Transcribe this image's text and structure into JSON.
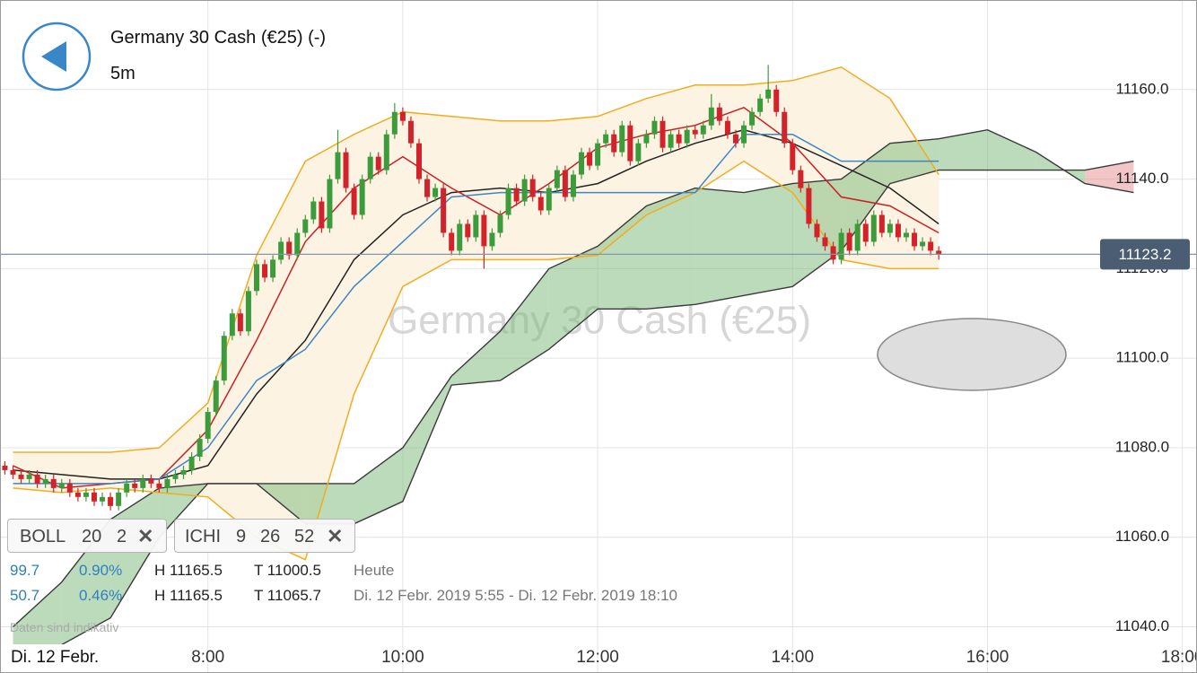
{
  "chart_data": {
    "type": "candlestick",
    "title": "Germany 30 Cash (€25) (-)",
    "interval": "5m",
    "watermark": "Germany 30 Cash (€25)",
    "date_label": "Di. 12 Febr.",
    "x": [
      "5:55",
      "6:00",
      "6:05",
      "6:10",
      "6:15",
      "6:20",
      "6:25",
      "6:30",
      "6:35",
      "6:40",
      "6:45",
      "6:50",
      "6:55",
      "7:00",
      "7:05",
      "7:10",
      "7:15",
      "7:20",
      "7:25",
      "7:30",
      "7:35",
      "7:40",
      "7:45",
      "7:50",
      "7:55",
      "8:00",
      "8:05",
      "8:10",
      "8:15",
      "8:20",
      "8:25",
      "8:30",
      "8:35",
      "8:40",
      "8:45",
      "8:50",
      "8:55",
      "9:00",
      "9:05",
      "9:10",
      "9:15",
      "9:20",
      "9:25",
      "9:30",
      "9:35",
      "9:40",
      "9:45",
      "9:50",
      "9:55",
      "10:00",
      "10:05",
      "10:10",
      "10:15",
      "10:20",
      "10:25",
      "10:30",
      "10:35",
      "10:40",
      "10:45",
      "10:50",
      "10:55",
      "11:00",
      "11:05",
      "11:10",
      "11:15",
      "11:20",
      "11:25",
      "11:30",
      "11:35",
      "11:40",
      "11:45",
      "11:50",
      "11:55",
      "12:00",
      "12:05",
      "12:10",
      "12:15",
      "12:20",
      "12:25",
      "12:30",
      "12:35",
      "12:40",
      "12:45",
      "12:50",
      "12:55",
      "13:00",
      "13:05",
      "13:10",
      "13:15",
      "13:20",
      "13:25",
      "13:30",
      "13:35",
      "13:40",
      "13:45",
      "13:50",
      "13:55",
      "14:00",
      "14:05",
      "14:10",
      "14:15",
      "14:20",
      "14:25",
      "14:30",
      "14:35",
      "14:40",
      "14:45",
      "14:50",
      "14:55",
      "15:00",
      "15:05",
      "15:10",
      "15:15",
      "15:20",
      "15:25",
      "15:30"
    ],
    "open": [
      11076,
      11075,
      11074,
      11073,
      11074,
      11072,
      11073,
      11071,
      11072,
      11070,
      11069,
      11070,
      11068,
      11069,
      11067,
      11070,
      11072,
      11071,
      11073,
      11072,
      11071,
      11073,
      11074,
      11075,
      11078,
      11082,
      11088,
      11095,
      11105,
      11110,
      11106,
      11115,
      11121,
      11118,
      11122,
      11126,
      11123,
      11128,
      11131,
      11135,
      11129,
      11140,
      11146,
      11138,
      11132,
      11140,
      11145,
      11142,
      11150,
      11155,
      11153,
      11148,
      11140,
      11136,
      11138,
      11128,
      11124,
      11130,
      11127,
      11132,
      11125,
      11128,
      11132,
      11138,
      11135,
      11140,
      11136,
      11133,
      11138,
      11142,
      11136,
      11141,
      11146,
      11143,
      11148,
      11150,
      11146,
      11152,
      11144,
      11148,
      11150,
      11153,
      11147,
      11150,
      11148,
      11151,
      11150,
      11152,
      11156,
      11153,
      11150,
      11148,
      11152,
      11155,
      11158,
      11160,
      11155,
      11148,
      11142,
      11138,
      11130,
      11127,
      11125,
      11122,
      11128,
      11124,
      11130,
      11126,
      11132,
      11128,
      11130,
      11127,
      11128,
      11125,
      11126,
      11124
    ],
    "high": [
      11077,
      11076,
      11075,
      11075,
      11075,
      11074,
      11074,
      11073,
      11073,
      11071,
      11071,
      11071,
      11070,
      11070,
      11071,
      11073,
      11073,
      11074,
      11074,
      11073,
      11074,
      11075,
      11076,
      11079,
      11083,
      11089,
      11096,
      11106,
      11111,
      11111,
      11116,
      11122,
      11122,
      11123,
      11127,
      11127,
      11129,
      11132,
      11136,
      11136,
      11141,
      11151,
      11147,
      11139,
      11141,
      11146,
      11146,
      11151,
      11157,
      11156,
      11154,
      11149,
      11141,
      11139,
      11139,
      11129,
      11131,
      11131,
      11133,
      11133,
      11129,
      11133,
      11139,
      11139,
      11141,
      11141,
      11137,
      11139,
      11143,
      11143,
      11142,
      11147,
      11147,
      11149,
      11151,
      11151,
      11153,
      11153,
      11149,
      11151,
      11154,
      11154,
      11151,
      11151,
      11152,
      11152,
      11153,
      11159,
      11157,
      11154,
      11151,
      11153,
      11156,
      11159,
      11165.5,
      11161,
      11156,
      11149,
      11143,
      11139,
      11131,
      11128,
      11126,
      11129,
      11129,
      11131,
      11131,
      11133,
      11133,
      11131,
      11131,
      11129,
      11129,
      11127,
      11127,
      11125
    ],
    "low": [
      11074,
      11073,
      11072,
      11072,
      11071,
      11071,
      11070,
      11070,
      11069,
      11068,
      11068,
      11067,
      11067,
      11066,
      11066,
      11069,
      11070,
      11070,
      11071,
      11070,
      11070,
      11072,
      11073,
      11074,
      11077,
      11081,
      11087,
      11094,
      11104,
      11105,
      11105,
      11114,
      11117,
      11117,
      11121,
      11122,
      11122,
      11127,
      11130,
      11128,
      11128,
      11139,
      11137,
      11131,
      11131,
      11139,
      11141,
      11141,
      11149,
      11152,
      11147,
      11139,
      11135,
      11135,
      11127,
      11123,
      11123,
      11126,
      11126,
      11120,
      11124,
      11127,
      11131,
      11134,
      11134,
      11135,
      11132,
      11132,
      11137,
      11135,
      11135,
      11140,
      11142,
      11142,
      11147,
      11145,
      11145,
      11143,
      11143,
      11147,
      11149,
      11146,
      11146,
      11147,
      11147,
      11149,
      11149,
      11151,
      11152,
      11149,
      11147,
      11147,
      11151,
      11154,
      11157,
      11154,
      11147,
      11141,
      11137,
      11129,
      11126,
      11124,
      11121,
      11121,
      11123,
      11123,
      11125,
      11125,
      11127,
      11127,
      11126,
      11126,
      11124,
      11124,
      11123,
      11122
    ],
    "close": [
      11075,
      11074,
      11073,
      11074,
      11072,
      11073,
      11071,
      11072,
      11070,
      11069,
      11070,
      11068,
      11069,
      11067,
      11070,
      11072,
      11071,
      11073,
      11072,
      11071,
      11073,
      11074,
      11075,
      11078,
      11082,
      11088,
      11095,
      11105,
      11110,
      11106,
      11115,
      11121,
      11118,
      11122,
      11126,
      11123,
      11128,
      11131,
      11135,
      11129,
      11140,
      11146,
      11138,
      11132,
      11140,
      11145,
      11142,
      11150,
      11155,
      11153,
      11148,
      11140,
      11136,
      11138,
      11128,
      11124,
      11130,
      11127,
      11132,
      11125,
      11128,
      11132,
      11138,
      11135,
      11140,
      11136,
      11133,
      11138,
      11142,
      11136,
      11141,
      11146,
      11143,
      11148,
      11150,
      11146,
      11152,
      11144,
      11148,
      11150,
      11153,
      11147,
      11150,
      11148,
      11151,
      11150,
      11152,
      11156,
      11153,
      11150,
      11148,
      11152,
      11155,
      11158,
      11160,
      11155,
      11148,
      11142,
      11138,
      11130,
      11127,
      11125,
      11122,
      11128,
      11124,
      11130,
      11126,
      11132,
      11128,
      11130,
      11127,
      11128,
      11125,
      11126,
      11124,
      11123.2
    ],
    "up_color": "#3c9c3c",
    "down_color": "#d2232a",
    "indicators": {
      "x": [
        "6:00",
        "6:30",
        "7:00",
        "7:30",
        "8:00",
        "8:30",
        "9:00",
        "9:30",
        "10:00",
        "10:30",
        "11:00",
        "11:30",
        "12:00",
        "12:30",
        "13:00",
        "13:30",
        "14:00",
        "14:30",
        "15:00",
        "15:30"
      ],
      "band_fill": "#fdf3e3",
      "series": [
        {
          "color": "#f0ad1e",
          "values": [
            11079,
            11079,
            11079,
            11080,
            11090,
            11123,
            11144,
            11150,
            11155,
            11154,
            11153,
            11153,
            11154,
            11158,
            11161,
            11161,
            11162,
            11165,
            11158,
            11141
          ]
        },
        {
          "color": "#222222",
          "values": [
            11075,
            11074,
            11073,
            11073,
            11076,
            11092,
            11104,
            11122,
            11132,
            11137,
            11138,
            11137,
            11139,
            11144,
            11148,
            11151,
            11148,
            11143,
            11138,
            11130
          ]
        },
        {
          "color": "#f0ad1e",
          "values": [
            11071,
            11070,
            11071,
            11070,
            11069,
            11060,
            11055,
            11092,
            11116,
            11122,
            11122,
            11122,
            11123,
            11132,
            11137,
            11144,
            11137,
            11122,
            11120,
            11120
          ]
        },
        {
          "color": "#cc1f24",
          "values": [
            11076,
            11071,
            11072,
            11073,
            11084,
            11104,
            11126,
            11138,
            11145,
            11138,
            11132,
            11139,
            11147,
            11150,
            11152,
            11156,
            11148,
            11136,
            11134,
            11128
          ]
        },
        {
          "color": "#3d86c6",
          "values": [
            11072,
            11072,
            11072,
            11073,
            11080,
            11095,
            11102,
            11116,
            11126,
            11136,
            11137,
            11137,
            11137,
            11137,
            11137,
            11150,
            11150,
            11144,
            11144,
            11144
          ]
        }
      ]
    },
    "cloud": {
      "x": [
        "6:00",
        "6:30",
        "7:00",
        "7:30",
        "8:00",
        "8:30",
        "9:00",
        "9:30",
        "10:00",
        "10:30",
        "11:00",
        "11:30",
        "12:00",
        "12:30",
        "13:00",
        "13:30",
        "14:00",
        "14:30",
        "15:00",
        "15:30",
        "16:00",
        "16:30",
        "17:00",
        "17:30"
      ],
      "span_a": [
        11040,
        11050,
        11064,
        11071,
        11072,
        11072,
        11072,
        11072,
        11080,
        11096,
        11106,
        11120,
        11125,
        11134,
        11138,
        11137,
        11139,
        11140,
        11148,
        11149,
        11151,
        11146,
        11139,
        11137
      ],
      "span_b": [
        11032,
        11036,
        11042,
        11060,
        11072,
        11072,
        11063,
        11063,
        11068,
        11094,
        11095,
        11102,
        11111,
        11111,
        11112,
        11114,
        11116,
        11124,
        11139,
        11142,
        11142,
        11142,
        11142,
        11144
      ],
      "line_color": "#3a3a3a",
      "up_color": "#7ab878",
      "down_color": "#e58e8e"
    },
    "xlim": [
      "5:52",
      "18:09"
    ],
    "xticks": [
      "8:00",
      "10:00",
      "12:00",
      "14:00",
      "16:00",
      "18:00"
    ],
    "ylim": [
      11035.7,
      11180
    ],
    "yticks": [
      {
        "value": 11040,
        "label": "11040.0"
      },
      {
        "value": 11060,
        "label": "11060.0"
      },
      {
        "value": 11080,
        "label": "11080.0"
      },
      {
        "value": 11100,
        "label": "11100.0"
      },
      {
        "value": 11120,
        "label": "11120.0"
      },
      {
        "value": 11140,
        "label": "11140.0"
      },
      {
        "value": 11160,
        "label": "11160.0"
      }
    ],
    "grid": true
  },
  "chips": [
    {
      "items": [
        "BOLL",
        "20",
        "2"
      ]
    },
    {
      "items": [
        "ICHI",
        "9",
        "26",
        "52"
      ]
    }
  ],
  "stats": [
    [
      "99.7",
      "0.90%",
      "H 11165.5",
      "T 11000.5",
      "Heute"
    ],
    [
      "50.7",
      "0.46%",
      "H 11165.5",
      "T 11065.7",
      "Di. 12 Febr. 2019 5:55 - Di. 12 Febr. 2019 18:10"
    ]
  ],
  "disclaimer": "Daten sind indikativ"
}
